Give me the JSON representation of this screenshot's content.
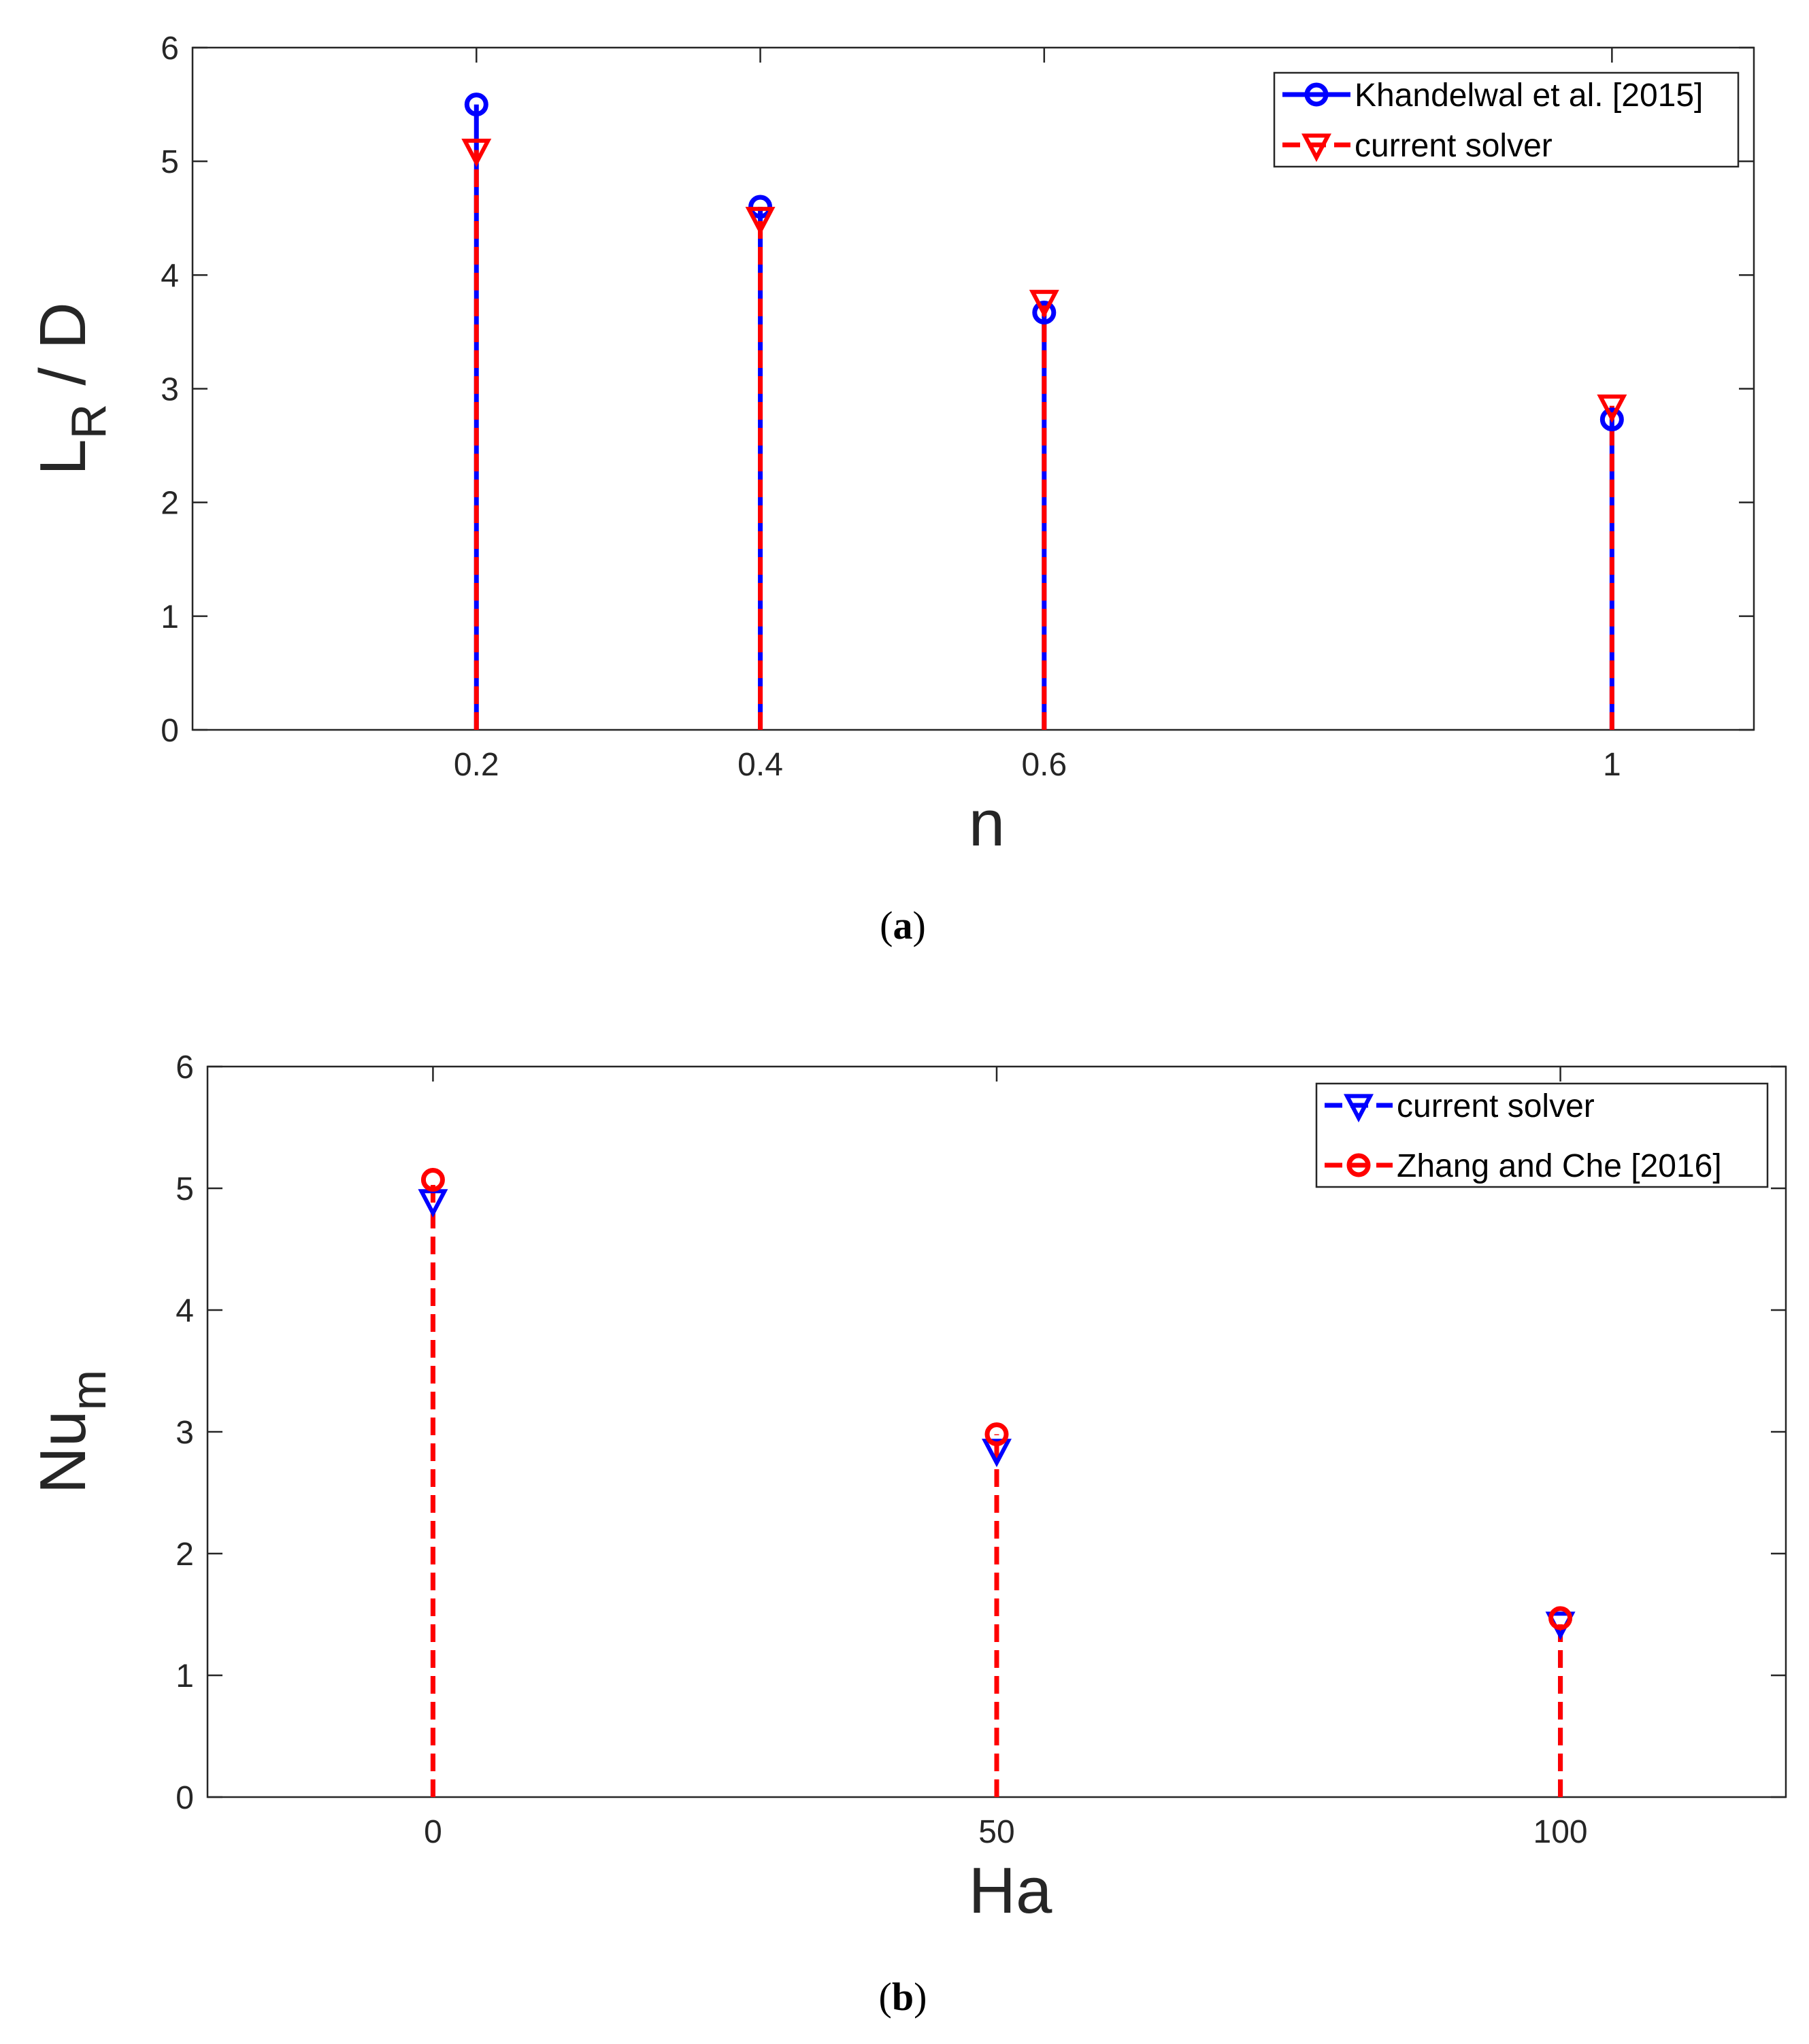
{
  "chart_data": [
    {
      "type": "stem",
      "panel": "(a)",
      "caption_label": "a",
      "xlabel": "n",
      "ylabel_main": "L",
      "ylabel_sub": "R",
      "ylabel_suffix": " / D",
      "xlim": [
        0.0,
        1.1
      ],
      "ylim": [
        0,
        6
      ],
      "xticks": [
        0.2,
        0.4,
        0.6,
        1
      ],
      "xtick_labels": [
        "0.2",
        "0.4",
        "0.6",
        "1"
      ],
      "yticks": [
        0,
        1,
        2,
        3,
        4,
        5,
        6
      ],
      "ytick_labels": [
        "0",
        "1",
        "2",
        "3",
        "4",
        "5",
        "6"
      ],
      "legend_position": "top-right",
      "series": [
        {
          "name": "Khandelwal et al. [2015]",
          "color": "#0000ff",
          "marker": "circle",
          "line": "solid",
          "x": [
            0.2,
            0.4,
            0.6,
            1
          ],
          "values": [
            5.5,
            4.6,
            3.67,
            2.73
          ]
        },
        {
          "name": "current solver",
          "color": "#ff0000",
          "marker": "triangle-down",
          "line": "dashed",
          "x": [
            0.2,
            0.4,
            0.6,
            1
          ],
          "values": [
            5.1,
            4.5,
            3.77,
            2.85
          ]
        }
      ]
    },
    {
      "type": "stem",
      "panel": "(b)",
      "caption_label": "b",
      "xlabel": "Ha",
      "ylabel_main": "Nu",
      "ylabel_sub": "m",
      "ylabel_suffix": "",
      "xlim": [
        -20,
        120
      ],
      "ylim": [
        0,
        6
      ],
      "xticks": [
        0,
        50,
        100
      ],
      "xtick_labels": [
        "0",
        "50",
        "100"
      ],
      "yticks": [
        0,
        1,
        2,
        3,
        4,
        5,
        6
      ],
      "ytick_labels": [
        "0",
        "1",
        "2",
        "3",
        "4",
        "5",
        "6"
      ],
      "legend_position": "top-right",
      "series": [
        {
          "name": "current solver",
          "color": "#0000ff",
          "marker": "triangle-down",
          "line": "dashed",
          "x": [
            0,
            50,
            100
          ],
          "values": [
            4.9,
            2.85,
            1.43
          ]
        },
        {
          "name": "Zhang and Che [2016]",
          "color": "#ff0000",
          "marker": "circle",
          "line": "dashed",
          "x": [
            0,
            50,
            100
          ],
          "values": [
            5.07,
            2.98,
            1.47
          ]
        }
      ]
    }
  ]
}
